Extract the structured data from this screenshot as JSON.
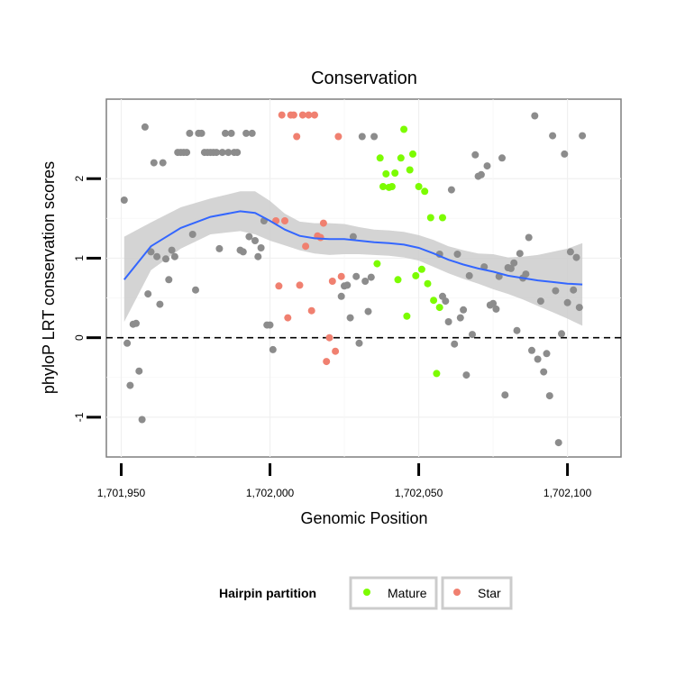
{
  "chart_data": {
    "type": "scatter",
    "title": "Conservation",
    "xlabel": "Genomic Position",
    "ylabel": "phyloP LRT conservation scores",
    "xlim": [
      1701945,
      1702118
    ],
    "ylim": [
      -1.5,
      3.0
    ],
    "x_ticks": [
      1701950,
      1702000,
      1702050,
      1702100
    ],
    "x_tick_labels": [
      "1,701,950",
      "1,702,000",
      "1,702,050",
      "1,702,100"
    ],
    "y_ticks": [
      -1,
      0,
      1,
      2
    ],
    "y_tick_labels": [
      "-1",
      "0",
      "1",
      "2"
    ],
    "grid": true,
    "reference_line": {
      "y": 0,
      "style": "dashed"
    },
    "legend": {
      "title": "Hairpin partition",
      "placement": "bottom",
      "items": [
        {
          "label": "Mature",
          "color": "#7CFC00"
        },
        {
          "label": "Star",
          "color": "#F08070"
        }
      ]
    },
    "colors": {
      "other": "#8c8c8c",
      "Mature": "#7CFC00",
      "Star": "#F08070",
      "smooth": "#3366FF",
      "band": "#cccccc"
    },
    "series": [
      {
        "group": "other",
        "points": [
          [
            1701951,
            1.73
          ],
          [
            1701952,
            -0.07
          ],
          [
            1701953,
            -0.6
          ],
          [
            1701954,
            0.17
          ],
          [
            1701955,
            0.18
          ],
          [
            1701956,
            -0.42
          ],
          [
            1701957,
            -1.03
          ],
          [
            1701958,
            2.65
          ],
          [
            1701959,
            0.55
          ],
          [
            1701960,
            1.08
          ],
          [
            1701961,
            2.2
          ],
          [
            1701962,
            1.02
          ],
          [
            1701963,
            0.42
          ],
          [
            1701964,
            2.2
          ],
          [
            1701965,
            0.99
          ],
          [
            1701966,
            0.73
          ],
          [
            1701967,
            1.1
          ],
          [
            1701968,
            1.02
          ],
          [
            1701969,
            2.33
          ],
          [
            1701970,
            2.33
          ],
          [
            1701971,
            2.33
          ],
          [
            1701972,
            2.33
          ],
          [
            1701973,
            2.57
          ],
          [
            1701974,
            1.3
          ],
          [
            1701975,
            0.6
          ],
          [
            1701976,
            2.57
          ],
          [
            1701977,
            2.57
          ],
          [
            1701978,
            2.33
          ],
          [
            1701979,
            2.33
          ],
          [
            1701980,
            2.33
          ],
          [
            1701981,
            2.33
          ],
          [
            1701982,
            2.33
          ],
          [
            1701983,
            1.12
          ],
          [
            1701984,
            2.33
          ],
          [
            1701985,
            2.57
          ],
          [
            1701986,
            2.33
          ],
          [
            1701987,
            2.57
          ],
          [
            1701988,
            2.33
          ],
          [
            1701989,
            2.33
          ],
          [
            1701990,
            1.1
          ],
          [
            1701991,
            1.08
          ],
          [
            1701992,
            2.57
          ],
          [
            1701993,
            1.27
          ],
          [
            1701994,
            2.57
          ],
          [
            1701995,
            1.22
          ],
          [
            1701996,
            1.02
          ],
          [
            1701997,
            1.13
          ],
          [
            1701998,
            1.47
          ],
          [
            1701999,
            0.16
          ],
          [
            1702000,
            0.16
          ],
          [
            1702001,
            -0.15
          ],
          [
            1702024,
            0.52
          ],
          [
            1702025,
            0.65
          ],
          [
            1702026,
            0.66
          ],
          [
            1702027,
            0.25
          ],
          [
            1702028,
            1.27
          ],
          [
            1702029,
            0.77
          ],
          [
            1702030,
            -0.07
          ],
          [
            1702031,
            2.53
          ],
          [
            1702032,
            0.71
          ],
          [
            1702033,
            0.33
          ],
          [
            1702034,
            0.76
          ],
          [
            1702035,
            2.53
          ],
          [
            1702057,
            1.05
          ],
          [
            1702058,
            0.52
          ],
          [
            1702059,
            0.46
          ],
          [
            1702060,
            0.2
          ],
          [
            1702061,
            1.86
          ],
          [
            1702062,
            -0.08
          ],
          [
            1702063,
            1.05
          ],
          [
            1702064,
            0.25
          ],
          [
            1702065,
            0.35
          ],
          [
            1702066,
            -0.47
          ],
          [
            1702067,
            0.78
          ],
          [
            1702068,
            0.04
          ],
          [
            1702069,
            2.3
          ],
          [
            1702070,
            2.03
          ],
          [
            1702071,
            2.05
          ],
          [
            1702072,
            0.89
          ],
          [
            1702073,
            2.16
          ],
          [
            1702074,
            0.41
          ],
          [
            1702075,
            0.43
          ],
          [
            1702076,
            0.36
          ],
          [
            1702077,
            0.77
          ],
          [
            1702078,
            2.26
          ],
          [
            1702079,
            -0.72
          ],
          [
            1702080,
            0.88
          ],
          [
            1702081,
            0.87
          ],
          [
            1702082,
            0.94
          ],
          [
            1702083,
            0.09
          ],
          [
            1702084,
            1.06
          ],
          [
            1702085,
            0.75
          ],
          [
            1702086,
            0.8
          ],
          [
            1702087,
            1.26
          ],
          [
            1702088,
            -0.16
          ],
          [
            1702089,
            2.79
          ],
          [
            1702090,
            -0.27
          ],
          [
            1702091,
            0.46
          ],
          [
            1702092,
            -0.43
          ],
          [
            1702093,
            -0.2
          ],
          [
            1702094,
            -0.73
          ],
          [
            1702095,
            2.54
          ],
          [
            1702096,
            0.59
          ],
          [
            1702097,
            -1.32
          ],
          [
            1702098,
            0.05
          ],
          [
            1702099,
            2.31
          ],
          [
            1702100,
            0.44
          ],
          [
            1702101,
            1.08
          ],
          [
            1702102,
            0.6
          ],
          [
            1702103,
            1.01
          ],
          [
            1702104,
            0.38
          ],
          [
            1702105,
            2.54
          ]
        ]
      },
      {
        "group": "Mature",
        "points": [
          [
            1702036,
            0.93
          ],
          [
            1702037,
            2.26
          ],
          [
            1702038,
            1.9
          ],
          [
            1702039,
            2.06
          ],
          [
            1702040,
            1.89
          ],
          [
            1702041,
            1.9
          ],
          [
            1702042,
            2.07
          ],
          [
            1702043,
            0.73
          ],
          [
            1702044,
            2.26
          ],
          [
            1702045,
            2.62
          ],
          [
            1702046,
            0.27
          ],
          [
            1702047,
            2.11
          ],
          [
            1702048,
            2.31
          ],
          [
            1702049,
            0.78
          ],
          [
            1702050,
            1.9
          ],
          [
            1702051,
            0.86
          ],
          [
            1702052,
            1.84
          ],
          [
            1702053,
            0.68
          ],
          [
            1702054,
            1.51
          ],
          [
            1702055,
            0.47
          ],
          [
            1702056,
            -0.45
          ],
          [
            1702057,
            0.38
          ],
          [
            1702058,
            1.51
          ]
        ]
      },
      {
        "group": "Star",
        "points": [
          [
            1702002,
            1.47
          ],
          [
            1702003,
            0.65
          ],
          [
            1702004,
            2.8
          ],
          [
            1702005,
            1.47
          ],
          [
            1702006,
            0.25
          ],
          [
            1702007,
            2.8
          ],
          [
            1702008,
            2.8
          ],
          [
            1702009,
            2.53
          ],
          [
            1702010,
            0.66
          ],
          [
            1702011,
            2.8
          ],
          [
            1702012,
            1.15
          ],
          [
            1702013,
            2.8
          ],
          [
            1702014,
            0.34
          ],
          [
            1702015,
            2.8
          ],
          [
            1702016,
            1.28
          ],
          [
            1702017,
            1.26
          ],
          [
            1702018,
            1.44
          ],
          [
            1702019,
            -0.3
          ],
          [
            1702020,
            0.0
          ],
          [
            1702021,
            0.71
          ],
          [
            1702022,
            -0.17
          ],
          [
            1702023,
            2.53
          ],
          [
            1702024,
            0.77
          ]
        ]
      }
    ],
    "smooth": {
      "x": [
        1701951,
        1701960,
        1701970,
        1701980,
        1701990,
        1701995,
        1702000,
        1702005,
        1702010,
        1702015,
        1702020,
        1702025,
        1702030,
        1702035,
        1702040,
        1702045,
        1702050,
        1702055,
        1702060,
        1702065,
        1702070,
        1702075,
        1702080,
        1702085,
        1702090,
        1702095,
        1702100,
        1702105
      ],
      "y": [
        0.73,
        1.15,
        1.38,
        1.52,
        1.59,
        1.57,
        1.47,
        1.36,
        1.28,
        1.25,
        1.24,
        1.24,
        1.22,
        1.2,
        1.19,
        1.17,
        1.13,
        1.06,
        0.98,
        0.92,
        0.87,
        0.83,
        0.78,
        0.75,
        0.72,
        0.7,
        0.68,
        0.67
      ],
      "lo": [
        0.2,
        0.85,
        1.12,
        1.3,
        1.34,
        1.3,
        1.22,
        1.16,
        1.1,
        1.06,
        1.04,
        1.05,
        1.05,
        1.04,
        1.03,
        1.01,
        0.97,
        0.89,
        0.81,
        0.74,
        0.68,
        0.61,
        0.55,
        0.48,
        0.4,
        0.32,
        0.24,
        0.15
      ],
      "hi": [
        1.27,
        1.45,
        1.64,
        1.75,
        1.84,
        1.84,
        1.72,
        1.56,
        1.46,
        1.44,
        1.44,
        1.43,
        1.39,
        1.36,
        1.35,
        1.33,
        1.29,
        1.23,
        1.15,
        1.1,
        1.06,
        1.05,
        1.01,
        1.02,
        1.04,
        1.08,
        1.12,
        1.19
      ]
    }
  }
}
